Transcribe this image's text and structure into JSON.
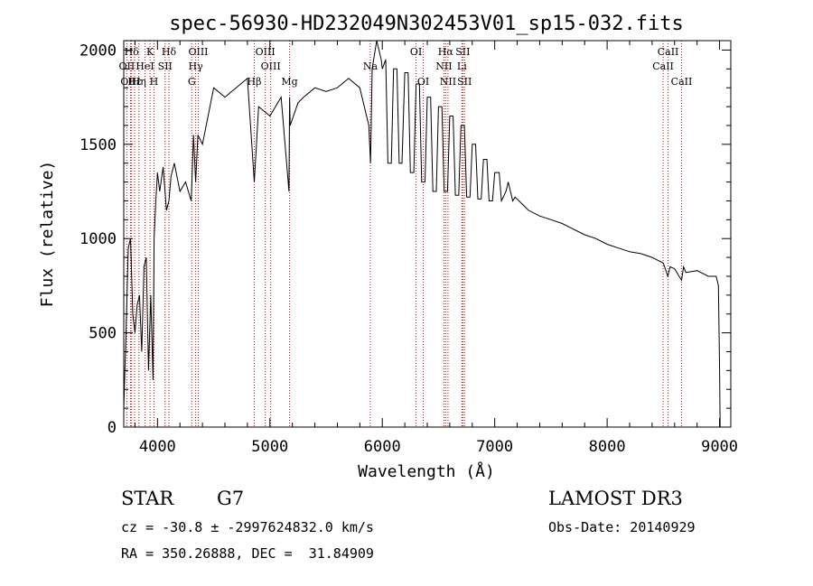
{
  "chart_data": {
    "type": "line",
    "title": "spec-56930-HD232049N302453V01_sp15-032.fits",
    "xlabel": "Wavelength (Å)",
    "ylabel": "Flux (relative)",
    "xlim": [
      3700,
      9100
    ],
    "ylim": [
      0,
      2050
    ],
    "xticks": [
      4000,
      5000,
      6000,
      7000,
      8000,
      9000
    ],
    "yticks": [
      0,
      500,
      1000,
      1500,
      2000
    ],
    "grid": false,
    "series": [
      {
        "name": "flux",
        "x": [
          3700,
          3720,
          3740,
          3760,
          3780,
          3800,
          3820,
          3840,
          3860,
          3880,
          3900,
          3920,
          3940,
          3960,
          3970,
          3985,
          4000,
          4020,
          4050,
          4080,
          4102,
          4120,
          4150,
          4200,
          4250,
          4300,
          4320,
          4340,
          4360,
          4400,
          4500,
          4600,
          4700,
          4800,
          4861,
          4900,
          5000,
          5100,
          5170,
          5175,
          5180,
          5250,
          5300,
          5400,
          5500,
          5600,
          5700,
          5800,
          5880,
          5895,
          5910,
          5950,
          5990,
          6000,
          6030,
          6050,
          6080,
          6100,
          6130,
          6150,
          6175,
          6200,
          6230,
          6250,
          6280,
          6300,
          6330,
          6350,
          6380,
          6400,
          6430,
          6450,
          6480,
          6500,
          6530,
          6550,
          6580,
          6600,
          6630,
          6650,
          6680,
          6700,
          6730,
          6750,
          6780,
          6800,
          6830,
          6850,
          6880,
          6900,
          6930,
          6950,
          6980,
          7000,
          7040,
          7060,
          7100,
          7120,
          7160,
          7180,
          7250,
          7300,
          7400,
          7500,
          7600,
          7700,
          7800,
          7900,
          8000,
          8100,
          8200,
          8300,
          8400,
          8500,
          8540,
          8560,
          8600,
          8640,
          8662,
          8680,
          8700,
          8800,
          8900,
          8970,
          8990,
          9000,
          9005
        ],
        "values": [
          100,
          500,
          950,
          1000,
          600,
          500,
          650,
          700,
          400,
          850,
          900,
          300,
          700,
          250,
          1000,
          1200,
          1350,
          1250,
          1380,
          1150,
          1200,
          1330,
          1400,
          1250,
          1300,
          1200,
          1550,
          1300,
          1550,
          1500,
          1800,
          1750,
          1800,
          1850,
          1300,
          1700,
          1650,
          1750,
          1250,
          1750,
          1600,
          1720,
          1750,
          1800,
          1780,
          1800,
          1850,
          1800,
          1600,
          1400,
          1900,
          2050,
          1950,
          1900,
          1950,
          1400,
          1400,
          1900,
          1900,
          1400,
          1400,
          1880,
          1880,
          1350,
          1350,
          1820,
          1820,
          1300,
          1300,
          1750,
          1750,
          1250,
          1250,
          1700,
          1700,
          1250,
          1250,
          1650,
          1650,
          1230,
          1230,
          1600,
          1600,
          1220,
          1220,
          1500,
          1500,
          1210,
          1210,
          1420,
          1420,
          1200,
          1200,
          1350,
          1350,
          1200,
          1250,
          1300,
          1200,
          1220,
          1180,
          1150,
          1120,
          1100,
          1080,
          1050,
          1020,
          1000,
          970,
          950,
          930,
          920,
          900,
          870,
          800,
          850,
          840,
          800,
          780,
          850,
          820,
          830,
          800,
          800,
          750,
          300,
          0
        ]
      }
    ],
    "lines": [
      {
        "name": "Hδ",
        "wave": 3770,
        "label_row": 1
      },
      {
        "name": "OII",
        "wave": 3727,
        "label_row": 2
      },
      {
        "name": "OIII",
        "wave": 3760,
        "label_row": 3
      },
      {
        "name": "Hε",
        "wave": 3797,
        "label_row": 3
      },
      {
        "name": "HeI",
        "wave": 3889,
        "label_row": 2
      },
      {
        "name": "K",
        "wave": 3934,
        "label_row": 1
      },
      {
        "name": "Hη",
        "wave": 3835,
        "label_row": 3
      },
      {
        "name": "H",
        "wave": 3969,
        "label_row": 3
      },
      {
        "name": "SII",
        "wave": 4068,
        "label_row": 2
      },
      {
        "name": "Hδ",
        "wave": 4102,
        "label_row": 1
      },
      {
        "name": "OIII",
        "wave": 4363,
        "label_row": 1
      },
      {
        "name": "Hγ",
        "wave": 4340,
        "label_row": 2
      },
      {
        "name": "G",
        "wave": 4305,
        "label_row": 3
      },
      {
        "name": "OIII",
        "wave": 4959,
        "label_row": 1
      },
      {
        "name": "OIII",
        "wave": 5007,
        "label_row": 2
      },
      {
        "name": "Hβ",
        "wave": 4861,
        "label_row": 3
      },
      {
        "name": "Mg",
        "wave": 5175,
        "label_row": 3
      },
      {
        "name": "Na",
        "wave": 5893,
        "label_row": 2
      },
      {
        "name": "OI",
        "wave": 6300,
        "label_row": 1
      },
      {
        "name": "OI",
        "wave": 6364,
        "label_row": 3
      },
      {
        "name": "Hα",
        "wave": 6563,
        "label_row": 1
      },
      {
        "name": "SII",
        "wave": 6716,
        "label_row": 1
      },
      {
        "name": "NII",
        "wave": 6548,
        "label_row": 2
      },
      {
        "name": "Li",
        "wave": 6708,
        "label_row": 2
      },
      {
        "name": "NII",
        "wave": 6584,
        "label_row": 3
      },
      {
        "name": "SII",
        "wave": 6731,
        "label_row": 3
      },
      {
        "name": "CaII",
        "wave": 8542,
        "label_row": 1
      },
      {
        "name": "CaII",
        "wave": 8498,
        "label_row": 2
      },
      {
        "name": "CaII",
        "wave": 8662,
        "label_row": 3
      }
    ]
  },
  "info": {
    "object_class": "STAR",
    "subclass": "G7",
    "survey": "LAMOST DR3",
    "cz": "cz = -30.8 ± -2997624832.0 km/s",
    "obs_date": "Obs-Date: 20140929",
    "radec": "RA = 350.26888, DEC =  31.84909"
  },
  "colors": {
    "axis": "#000000",
    "spectrum": "#000000",
    "line_marker": "#cc0000",
    "background": "#ffffff"
  }
}
